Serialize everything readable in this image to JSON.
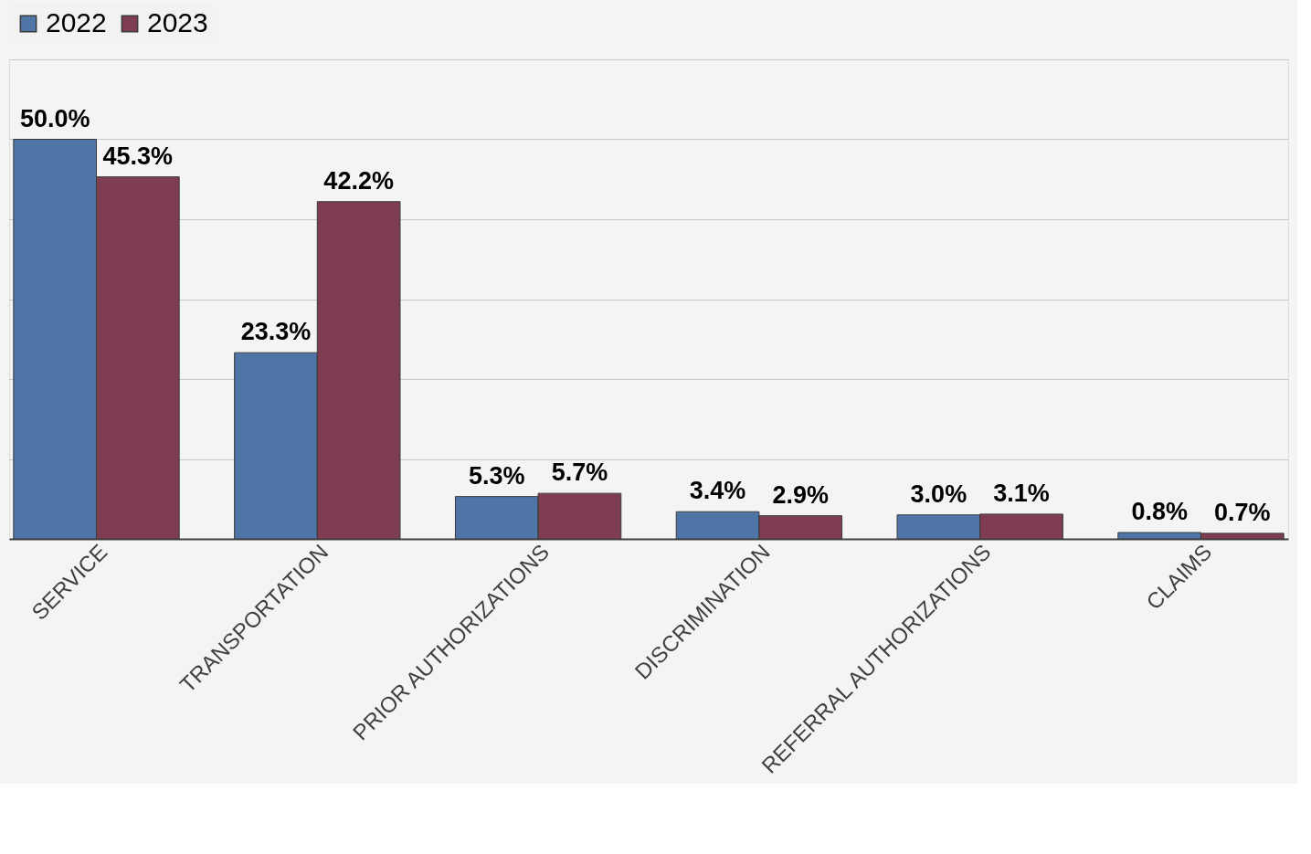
{
  "chart_data": {
    "type": "bar",
    "categories": [
      "SERVICE",
      "TRANSPORTATION",
      "PRIOR AUTHORIZATIONS",
      "DISCRIMINATION",
      "REFERRAL AUTHORIZATIONS",
      "CLAIMS"
    ],
    "series": [
      {
        "name": "2022",
        "color": "#4f74a6",
        "values": [
          50.0,
          23.3,
          5.3,
          3.4,
          3.0,
          0.8
        ],
        "value_labels": [
          "50.0%",
          "23.3%",
          "5.3%",
          "3.4%",
          "3.0%",
          "0.8%"
        ]
      },
      {
        "name": "2023",
        "color": "#7e3d50",
        "values": [
          45.3,
          42.2,
          5.7,
          2.9,
          3.1,
          0.7
        ],
        "value_labels": [
          "45.3%",
          "42.2%",
          "5.7%",
          "2.9%",
          "3.1%",
          "0.7%"
        ]
      }
    ],
    "ylim": [
      0,
      60
    ],
    "yticks": [
      {
        "value": 0,
        "label": null
      },
      {
        "value": 10,
        "label": null
      },
      {
        "value": 20,
        "label": null
      },
      {
        "value": 30,
        "label": null
      },
      {
        "value": 40,
        "label": null
      },
      {
        "value": 50,
        "label": null
      },
      {
        "value": 60,
        "label": null
      }
    ],
    "grid": "y",
    "legend": "top",
    "tick_labels": "x"
  }
}
